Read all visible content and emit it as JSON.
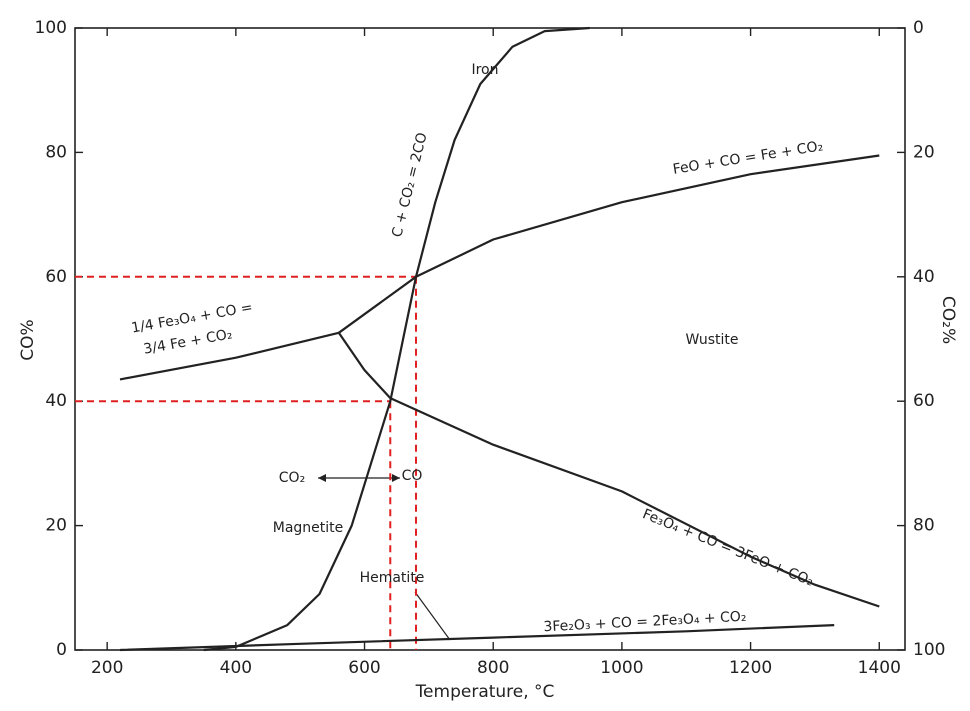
{
  "chart_data": {
    "type": "line",
    "xlabel": "Temperature, °C",
    "ylabel": "CO%",
    "y2label": "CO₂%",
    "xlim": [
      150,
      1440
    ],
    "ylim": [
      0,
      100
    ],
    "y2lim": [
      100,
      0
    ],
    "xticks": [
      200,
      400,
      600,
      800,
      1000,
      1200,
      1400
    ],
    "yticks": [
      0,
      20,
      40,
      60,
      80,
      100
    ],
    "y2ticks": [
      0,
      20,
      40,
      60,
      80,
      100
    ],
    "color": "#222222",
    "series": [
      {
        "labels": [
          "C + CO₂ = 2CO"
        ],
        "x": [
          350,
          400,
          480,
          530,
          580,
          610,
          640,
          660,
          680,
          710,
          740,
          780,
          830,
          880,
          950
        ],
        "y": [
          0,
          0.5,
          4,
          9,
          20,
          30,
          40,
          50,
          60,
          72,
          82,
          91,
          97,
          99.5,
          100
        ]
      },
      {
        "labels": [
          "FeO + CO = Fe + CO₂"
        ],
        "x": [
          560,
          620,
          680,
          800,
          1000,
          1200,
          1400
        ],
        "y": [
          51,
          55.5,
          60,
          66,
          72,
          76.5,
          79.5
        ]
      },
      {
        "labels": [
          "1/4 Fe₃O₄ + CO =",
          "3/4 Fe + CO₂"
        ],
        "x": [
          220,
          400,
          560
        ],
        "y": [
          43.5,
          47,
          51
        ]
      },
      {
        "labels": [
          "Fe₃O₄ + CO = 3FeO + CO₂"
        ],
        "x": [
          560,
          600,
          640,
          800,
          1000,
          1200,
          1300,
          1400
        ],
        "y": [
          51,
          45,
          40.5,
          33,
          25.5,
          15,
          10.5,
          7
        ]
      },
      {
        "labels": [
          "3Fe₂O₃ + CO = 2Fe₃O₄ + CO₂"
        ],
        "x": [
          220,
          500,
          800,
          1100,
          1330
        ],
        "y": [
          0,
          1,
          2,
          3,
          4
        ]
      }
    ],
    "guides": [
      {
        "x": 640,
        "y": 40
      },
      {
        "x": 680,
        "y": 60
      }
    ],
    "guide_color": "#e02020",
    "annotations": [
      "Iron",
      "Wustite",
      "Magnetite",
      "Hematite",
      "CO₂",
      "CO"
    ]
  }
}
